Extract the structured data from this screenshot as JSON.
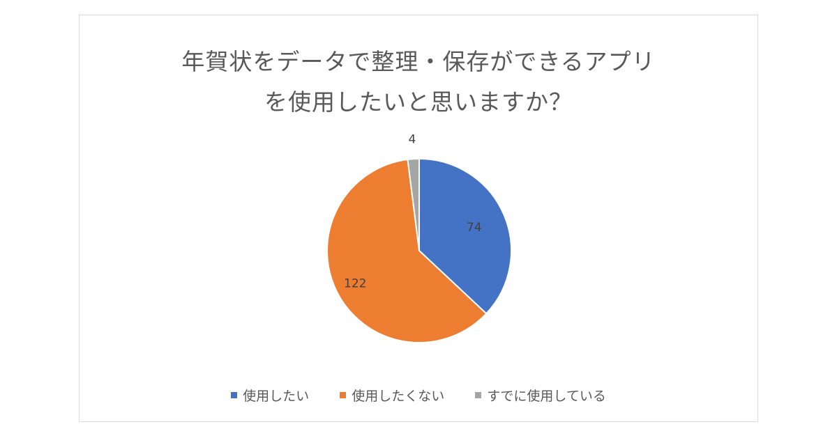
{
  "chart_data": {
    "type": "pie",
    "title_lines": [
      "年賀状をデータで整理・保存ができるアプリ",
      "を使用したいと思いますか？"
    ],
    "categories": [
      "使用したい",
      "使用したくない",
      "すでに使用している"
    ],
    "values": [
      74,
      122,
      4
    ],
    "colors": [
      "#4472c4",
      "#ed7d31",
      "#a5a5a5"
    ],
    "legend_position": "bottom"
  }
}
